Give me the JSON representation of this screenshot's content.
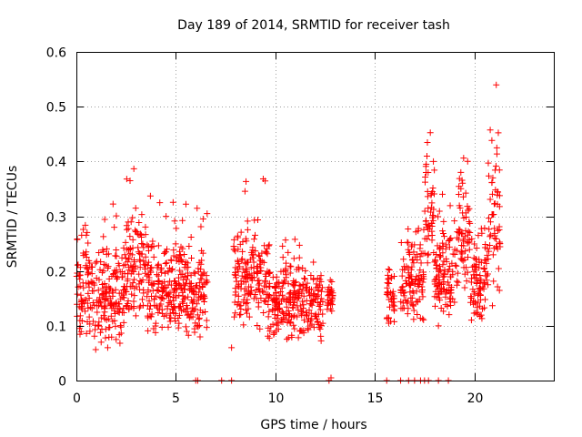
{
  "chart_data": {
    "type": "scatter",
    "title": "Day 189 of 2014, SRMTID for receiver tash",
    "xlabel": "GPS time / hours",
    "ylabel": "SRMTID / TECUs",
    "xlim": [
      0,
      24
    ],
    "ylim": [
      0,
      0.6
    ],
    "x_ticks": [
      0,
      5,
      10,
      15,
      20
    ],
    "y_ticks": [
      0,
      0.1,
      0.2,
      0.3,
      0.4,
      0.5,
      0.6
    ],
    "x_tick_labels": [
      "0",
      "5",
      "10",
      "15",
      "20"
    ],
    "y_tick_labels": [
      "0",
      "0.1",
      "0.2",
      "0.3",
      "0.4",
      "0.5",
      "0.6"
    ],
    "grid": true,
    "marker": "plus",
    "color": "#ff0000",
    "series": [
      {
        "name": "SRMTID",
        "segments": [
          {
            "x_start": 0.0,
            "x_end": 2.4,
            "y_low": 0.06,
            "y_high": 0.26,
            "peak": 0.33
          },
          {
            "x_start": 2.4,
            "x_end": 3.5,
            "y_low": 0.1,
            "y_high": 0.3,
            "peak": 0.39
          },
          {
            "x_start": 3.5,
            "x_end": 6.6,
            "y_low": 0.08,
            "y_high": 0.26,
            "peak": 0.34
          },
          {
            "x_start": 7.9,
            "x_end": 9.6,
            "y_low": 0.1,
            "y_high": 0.28,
            "peak": 0.37
          },
          {
            "x_start": 9.6,
            "x_end": 12.4,
            "y_low": 0.07,
            "y_high": 0.22,
            "peak": 0.26
          },
          {
            "x_start": 12.6,
            "x_end": 12.9,
            "y_low": 0.12,
            "y_high": 0.18,
            "peak": 0.19
          },
          {
            "x_start": 15.6,
            "x_end": 16.0,
            "y_low": 0.1,
            "y_high": 0.2,
            "peak": 0.21
          },
          {
            "x_start": 16.3,
            "x_end": 17.5,
            "y_low": 0.1,
            "y_high": 0.26,
            "peak": 0.29
          },
          {
            "x_start": 17.5,
            "x_end": 18.0,
            "y_low": 0.2,
            "y_high": 0.42,
            "peak": 0.47
          },
          {
            "x_start": 18.0,
            "x_end": 19.2,
            "y_low": 0.12,
            "y_high": 0.28,
            "peak": 0.33
          },
          {
            "x_start": 19.2,
            "x_end": 19.8,
            "y_low": 0.16,
            "y_high": 0.38,
            "peak": 0.43
          },
          {
            "x_start": 19.8,
            "x_end": 20.7,
            "y_low": 0.1,
            "y_high": 0.26,
            "peak": 0.3
          },
          {
            "x_start": 20.7,
            "x_end": 21.3,
            "y_low": 0.14,
            "y_high": 0.44,
            "peak": 0.56
          }
        ],
        "zero_x": [
          6.0,
          6.1,
          7.3,
          7.8,
          12.7,
          15.6,
          16.3,
          16.7,
          17.0,
          17.3,
          17.5,
          17.7,
          18.2,
          18.7
        ],
        "isolated": [
          [
            7.8,
            0.06
          ],
          [
            12.8,
            0.005
          ],
          [
            18.2,
            0.1
          ],
          [
            18.4,
            0.34
          ]
        ]
      }
    ]
  }
}
